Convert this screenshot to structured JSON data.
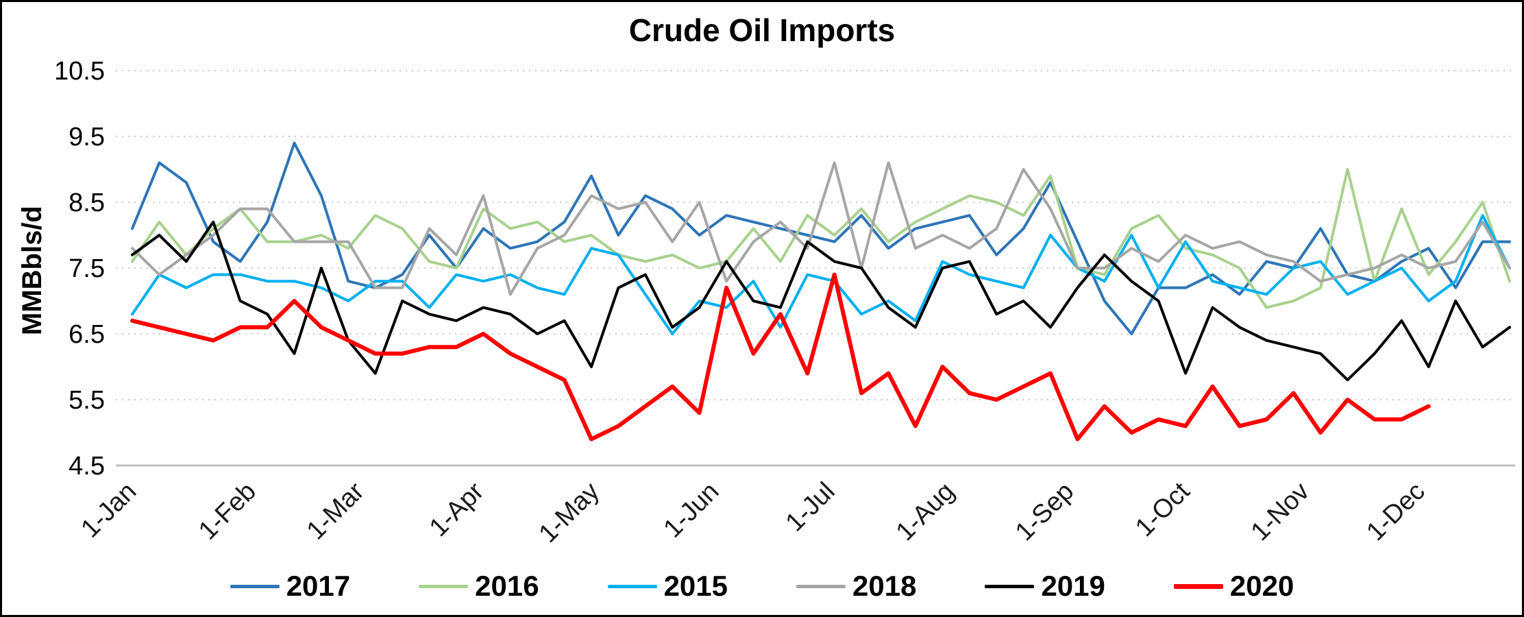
{
  "chart_data": {
    "type": "line",
    "title": "Crude Oil Imports",
    "xlabel": "",
    "ylabel": "MMBbls/d",
    "ylim": [
      4.5,
      10.5
    ],
    "y_ticks": [
      10.5,
      9.5,
      8.5,
      7.5,
      6.5,
      5.5,
      4.5
    ],
    "y_tick_labels": [
      "10.5",
      "9.5",
      "8.5",
      "7.5",
      "6.5",
      "5.5",
      "4.5"
    ],
    "x_tick_labels": [
      "1-Jan",
      "1-Feb",
      "1-Mar",
      "1-Apr",
      "1-May",
      "1-Jun",
      "1-Jul",
      "1-Aug",
      "1-Sep",
      "1-Oct",
      "1-Nov",
      "1-Dec"
    ],
    "x_tick_weeks": [
      0,
      4.43,
      8.43,
      12.86,
      17.14,
      21.57,
      25.86,
      30.29,
      34.71,
      39.0,
      43.43,
      47.71
    ],
    "x_unit": "week of year",
    "weeks_span": 52,
    "grid": "horizontal-dotted",
    "legend_position": "bottom",
    "series": [
      {
        "name": "2017",
        "color": "#2E75B6",
        "width": 4,
        "values": [
          8.1,
          9.1,
          8.8,
          7.9,
          7.6,
          8.2,
          9.4,
          8.6,
          7.3,
          7.2,
          7.4,
          8.0,
          7.5,
          8.1,
          7.8,
          7.9,
          8.2,
          8.9,
          8.0,
          8.6,
          8.4,
          8.0,
          8.3,
          8.2,
          8.1,
          8.0,
          7.9,
          8.3,
          7.8,
          8.1,
          8.2,
          8.3,
          7.7,
          8.1,
          8.8,
          7.9,
          7.0,
          6.5,
          7.2,
          7.2,
          7.4,
          7.1,
          7.6,
          7.5,
          8.1,
          7.4,
          7.3,
          7.6,
          7.8,
          7.2,
          7.9,
          7.9
        ]
      },
      {
        "name": "2016",
        "color": "#A9D18E",
        "width": 4,
        "values": [
          7.6,
          8.2,
          7.7,
          8.1,
          8.4,
          7.9,
          7.9,
          8.0,
          7.8,
          8.3,
          8.1,
          7.6,
          7.5,
          8.4,
          8.1,
          8.2,
          7.9,
          8.0,
          7.7,
          7.6,
          7.7,
          7.5,
          7.6,
          8.1,
          7.6,
          8.3,
          8.0,
          8.4,
          7.9,
          8.2,
          8.4,
          8.6,
          8.5,
          8.3,
          8.9,
          7.5,
          7.4,
          8.1,
          8.3,
          7.8,
          7.7,
          7.5,
          6.9,
          7.0,
          7.2,
          9.0,
          7.3,
          8.4,
          7.4,
          7.9,
          8.5,
          7.3
        ]
      },
      {
        "name": "2015",
        "color": "#00B0F0",
        "width": 4,
        "values": [
          6.8,
          7.4,
          7.2,
          7.4,
          7.4,
          7.3,
          7.3,
          7.2,
          7.0,
          7.3,
          7.3,
          6.9,
          7.4,
          7.3,
          7.4,
          7.2,
          7.1,
          7.8,
          7.7,
          7.1,
          6.5,
          7.0,
          6.9,
          7.3,
          6.6,
          7.4,
          7.3,
          6.8,
          7.0,
          6.7,
          7.6,
          7.4,
          7.3,
          7.2,
          8.0,
          7.5,
          7.3,
          8.0,
          7.2,
          7.9,
          7.3,
          7.2,
          7.1,
          7.5,
          7.6,
          7.1,
          7.3,
          7.5,
          7.0,
          7.3,
          8.3,
          7.5
        ]
      },
      {
        "name": "2018",
        "color": "#A6A6A6",
        "width": 4,
        "values": [
          7.8,
          7.4,
          7.7,
          8.0,
          8.4,
          8.4,
          7.9,
          7.9,
          7.9,
          7.2,
          7.2,
          8.1,
          7.7,
          8.6,
          7.1,
          7.8,
          8.0,
          8.6,
          8.4,
          8.5,
          7.9,
          8.5,
          7.3,
          7.9,
          8.2,
          7.8,
          9.1,
          7.5,
          9.1,
          7.8,
          8.0,
          7.8,
          8.1,
          9.0,
          8.4,
          7.5,
          7.5,
          7.8,
          7.6,
          8.0,
          7.8,
          7.9,
          7.7,
          7.6,
          7.3,
          7.4,
          7.5,
          7.7,
          7.5,
          7.6,
          8.2,
          7.5
        ]
      },
      {
        "name": "2019",
        "color": "#000000",
        "width": 4,
        "values": [
          7.7,
          8.0,
          7.6,
          8.2,
          7.0,
          6.8,
          6.2,
          7.5,
          6.4,
          5.9,
          7.0,
          6.8,
          6.7,
          6.9,
          6.8,
          6.5,
          6.7,
          6.0,
          7.2,
          7.4,
          6.6,
          6.9,
          7.6,
          7.0,
          6.9,
          7.9,
          7.6,
          7.5,
          6.9,
          6.6,
          7.5,
          7.6,
          6.8,
          7.0,
          6.6,
          7.2,
          7.7,
          7.3,
          7.0,
          5.9,
          6.9,
          6.6,
          6.4,
          6.3,
          6.2,
          5.8,
          6.2,
          6.7,
          6.0,
          7.0,
          6.3,
          6.6
        ]
      },
      {
        "name": "2020",
        "color": "#FF0000",
        "width": 6,
        "values": [
          6.7,
          6.6,
          6.5,
          6.4,
          6.6,
          6.6,
          7.0,
          6.6,
          6.4,
          6.2,
          6.2,
          6.3,
          6.3,
          6.5,
          6.2,
          6.0,
          5.8,
          4.9,
          5.1,
          5.4,
          5.7,
          5.3,
          7.2,
          6.2,
          6.8,
          5.9,
          7.4,
          5.6,
          5.9,
          5.1,
          6.0,
          5.6,
          5.5,
          5.7,
          5.9,
          4.9,
          5.4,
          5.0,
          5.2,
          5.1,
          5.7,
          5.1,
          5.2,
          5.6,
          5.0,
          5.5,
          5.2,
          5.2,
          5.4
        ]
      }
    ]
  }
}
